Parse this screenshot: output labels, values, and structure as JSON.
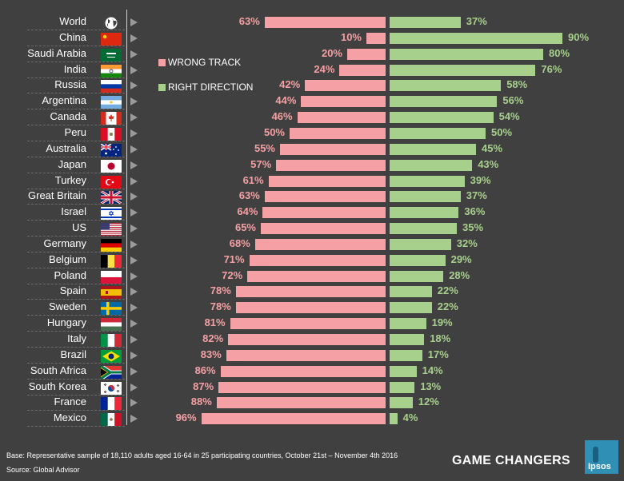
{
  "chart_data": {
    "type": "bar",
    "orientation": "horizontal-diverging",
    "title": "",
    "categories": [
      "World",
      "China",
      "Saudi Arabia",
      "India",
      "Russia",
      "Argentina",
      "Canada",
      "Peru",
      "Australia",
      "Japan",
      "Turkey",
      "Great Britain",
      "Israel",
      "US",
      "Germany",
      "Belgium",
      "Poland",
      "Spain",
      "Sweden",
      "Hungary",
      "Italy",
      "Brazil",
      "South Africa",
      "South Korea",
      "France",
      "Mexico"
    ],
    "series": [
      {
        "name": "WRONG TRACK",
        "color": "#f4a0a4",
        "values": [
          63,
          10,
          20,
          24,
          42,
          44,
          46,
          50,
          55,
          57,
          61,
          63,
          64,
          65,
          68,
          71,
          72,
          78,
          78,
          81,
          82,
          83,
          86,
          87,
          88,
          96
        ]
      },
      {
        "name": "RIGHT DIRECTION",
        "color": "#a8d08d",
        "values": [
          37,
          90,
          80,
          76,
          58,
          56,
          54,
          50,
          45,
          43,
          39,
          37,
          36,
          35,
          32,
          29,
          28,
          22,
          22,
          19,
          18,
          17,
          14,
          13,
          12,
          4
        ]
      }
    ],
    "value_suffix": "%",
    "legend": "top-left",
    "xlim": [
      0,
      100
    ],
    "grid": false
  },
  "legend": {
    "wrong": "WRONG  TRACK",
    "right": "RIGHT DIRECTION"
  },
  "flags": [
    "globe",
    "china",
    "saudi-arabia",
    "india",
    "russia",
    "argentina",
    "canada",
    "peru",
    "australia",
    "japan",
    "turkey",
    "great-britain",
    "israel",
    "us",
    "germany",
    "belgium",
    "poland",
    "spain",
    "sweden",
    "hungary",
    "italy",
    "brazil",
    "south-africa",
    "south-korea",
    "france",
    "mexico"
  ],
  "footer": {
    "base": "Base: Representative sample of 18,110 adults aged 16-64 in 25 participating countries, October 21st – November 4th 2016",
    "source": "Source: Global Advisor",
    "brand": "GAME CHANGERS",
    "logo": "Ipsos"
  }
}
